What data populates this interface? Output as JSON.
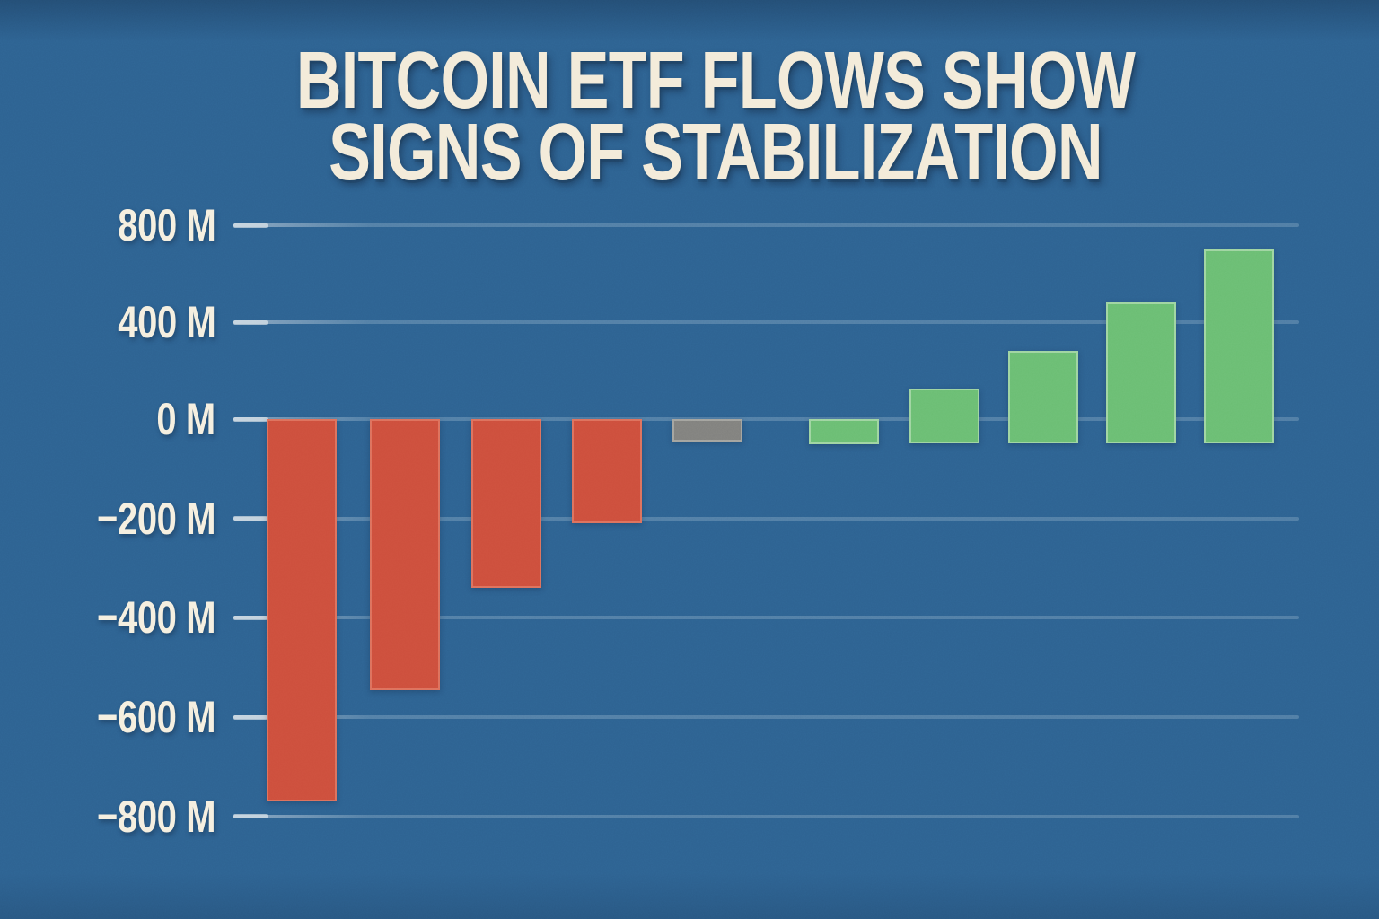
{
  "chart_data": {
    "type": "bar",
    "title": "BITCOIN ETF FLOWS SHOW SIGNS OF STABILIZATION",
    "title_lines": [
      "BITCOIN ETF FLOWS SHOW",
      "SIGNS OF STABILIZATION"
    ],
    "unit": "M",
    "xlabel": "",
    "ylabel": "",
    "ylim": [
      -800,
      800
    ],
    "grid": true,
    "legend": false,
    "x_tick_labels_visible": false,
    "y_ticks": [
      {
        "label": "800 M",
        "value": 800
      },
      {
        "label": "400 M",
        "value": 400
      },
      {
        "label": "0 M",
        "value": 0
      },
      {
        "label": "−200 M",
        "value": -200
      },
      {
        "label": "−400 M",
        "value": -400
      },
      {
        "label": "−600 M",
        "value": -600
      },
      {
        "label": "−800 M",
        "value": -800
      }
    ],
    "bars": [
      {
        "value": -770,
        "color": "red",
        "x": 297
      },
      {
        "value": -545,
        "color": "red",
        "x": 412
      },
      {
        "value": -340,
        "color": "red",
        "x": 525
      },
      {
        "value": -210,
        "color": "red",
        "x": 637
      },
      {
        "value": -45,
        "color": "gray",
        "x": 749
      },
      {
        "value": -50,
        "color": "green",
        "x": 901
      },
      {
        "value": 125,
        "color": "green",
        "x": 1013
      },
      {
        "value": 280,
        "color": "green",
        "x": 1123
      },
      {
        "value": 480,
        "color": "green",
        "x": 1232
      },
      {
        "value": 700,
        "color": "green",
        "x": 1341
      }
    ],
    "palette": {
      "background": "#2d6190",
      "red": "#cd4e3c",
      "red_border": "#dd705c",
      "green": "#6abd72",
      "green_border": "#9ed4a0",
      "gray": "#80807d",
      "gray_border": "#a3a39e",
      "grid": "#c1d4e6",
      "text": "#f3ebd9"
    }
  }
}
